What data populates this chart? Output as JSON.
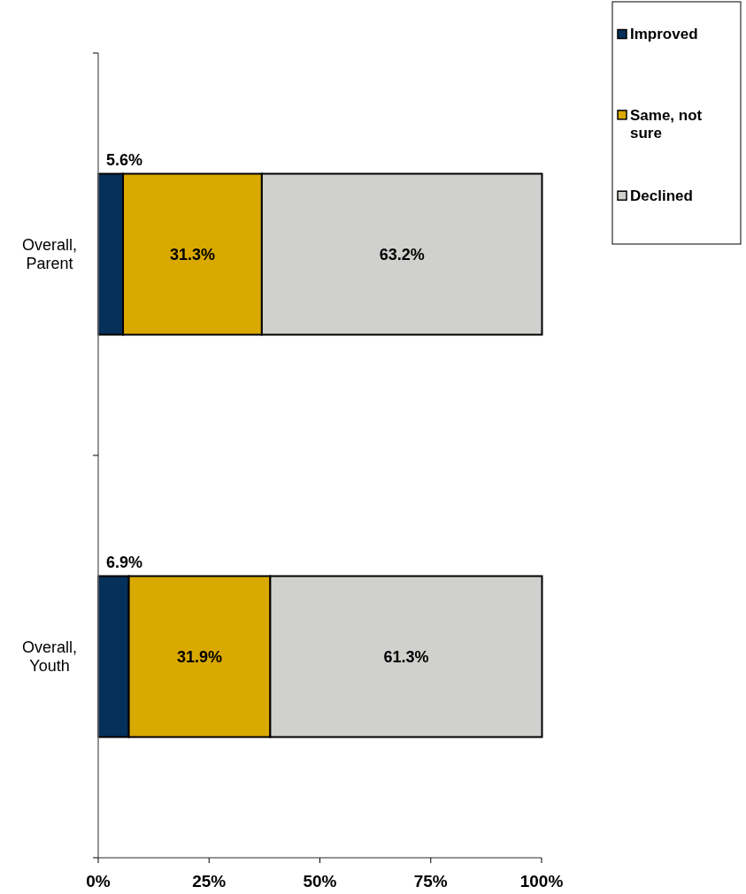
{
  "chart_data": {
    "type": "bar",
    "orientation": "horizontal",
    "stacked": true,
    "categories": [
      "Overall, Parent",
      "Overall, Youth"
    ],
    "series": [
      {
        "name": "Improved",
        "color": "#04305a",
        "values": [
          5.6,
          6.9
        ],
        "value_labels": [
          "5.6%",
          "6.9%"
        ]
      },
      {
        "name": "Same, not sure",
        "color": "#d9a900",
        "values": [
          31.3,
          31.9
        ],
        "value_labels": [
          "31.3%",
          "31.9%"
        ]
      },
      {
        "name": "Declined",
        "color": "#d0d0ce",
        "values": [
          63.2,
          61.3
        ],
        "value_labels": [
          "63.2%",
          "61.3%"
        ]
      }
    ],
    "xlim": [
      0,
      100
    ],
    "xticks": [
      {
        "value": 0,
        "label": "0%"
      },
      {
        "value": 25,
        "label": "25%"
      },
      {
        "value": 50,
        "label": "50%"
      },
      {
        "value": 75,
        "label": "75%"
      },
      {
        "value": 100,
        "label": "100%"
      }
    ],
    "legend": "top right"
  }
}
